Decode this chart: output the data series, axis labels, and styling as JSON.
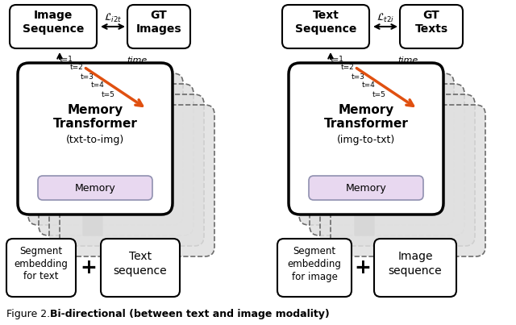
{
  "fig_width": 6.4,
  "fig_height": 4.03,
  "bg_color": "#ffffff",
  "dashed_edge": "#555555",
  "memory_fill": "#e8d8f0",
  "arrow_orange": "#e05010",
  "arrow_gray": "#a0a0a0",
  "time_labels": [
    "t=1",
    "t=2",
    "t=3",
    "t=4",
    "t=5"
  ]
}
